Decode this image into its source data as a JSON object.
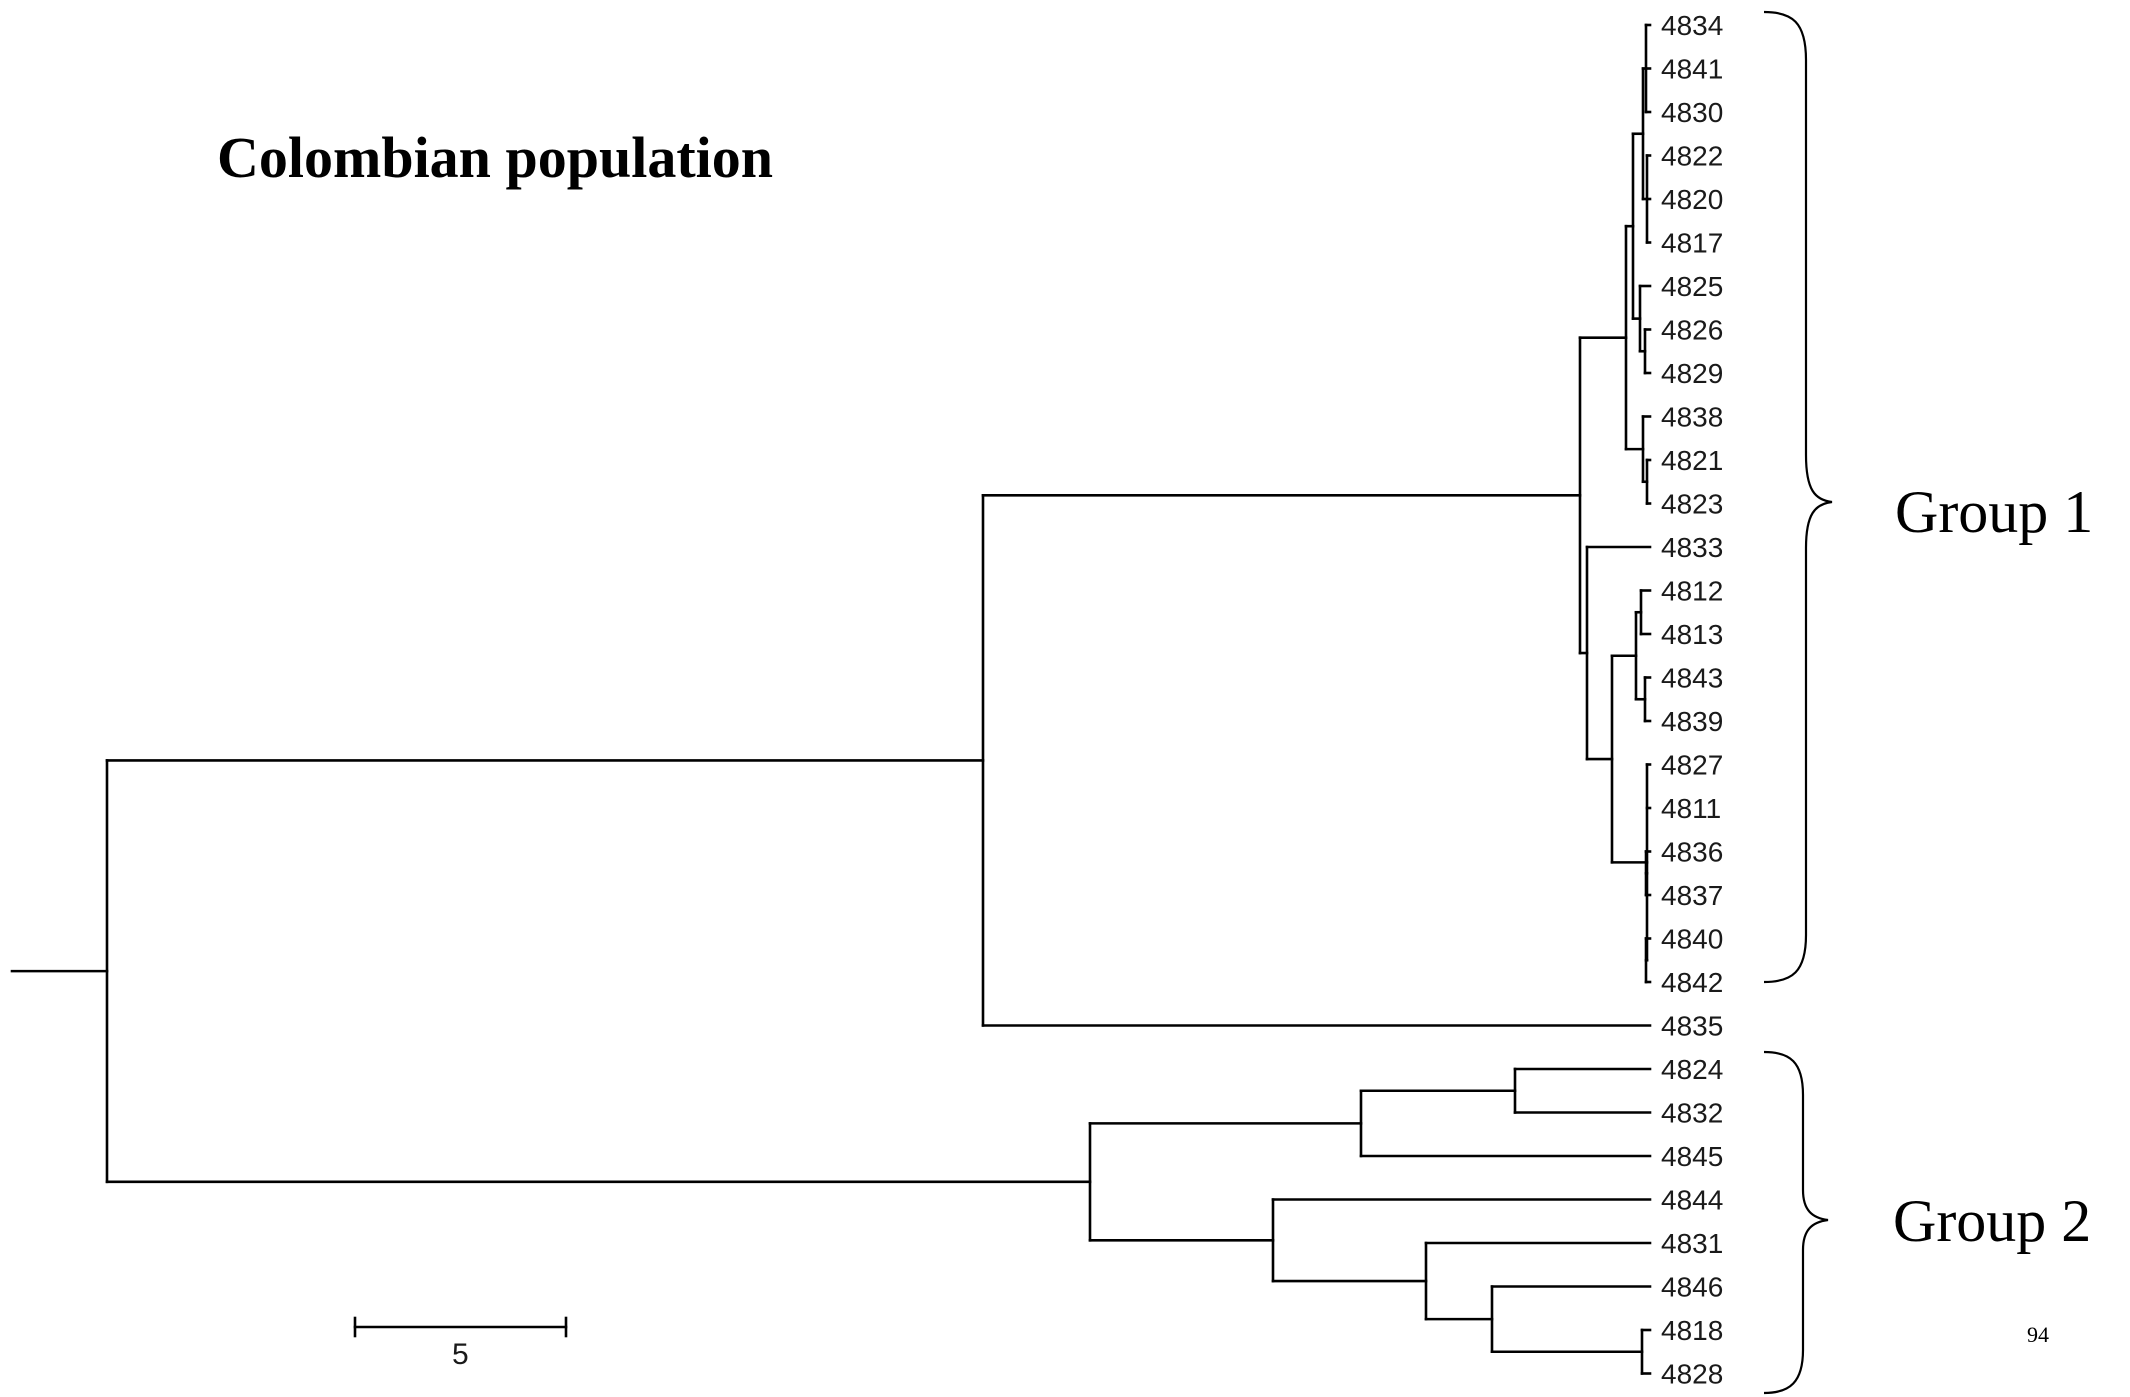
{
  "title": "Colombian population",
  "group1": {
    "label": "Group 1"
  },
  "group2": {
    "label": "Group 2"
  },
  "scale_bar": {
    "label": "5",
    "length": 5
  },
  "page_number": "94",
  "leaves": [
    "4834",
    "4841",
    "4830",
    "4822",
    "4820",
    "4817",
    "4825",
    "4826",
    "4829",
    "4838",
    "4821",
    "4823",
    "4833",
    "4812",
    "4813",
    "4843",
    "4839",
    "4827",
    "4811",
    "4836",
    "4837",
    "4840",
    "4842",
    "4835",
    "4824",
    "4832",
    "4845",
    "4844",
    "4831",
    "4846",
    "4818",
    "4828"
  ]
}
